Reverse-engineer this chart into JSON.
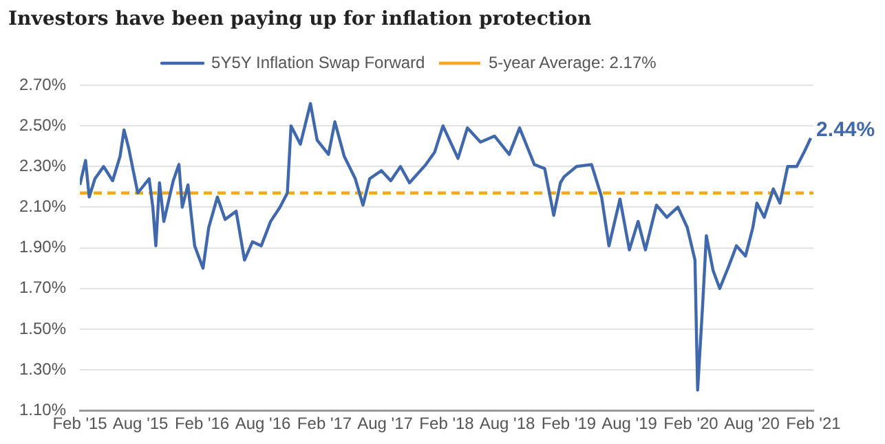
{
  "chart_data": {
    "type": "line",
    "title": "Investors have been paying up for inflation protection",
    "x": [
      "2015-02-01",
      "2015-02-18",
      "2015-03-01",
      "2015-03-18",
      "2015-04-13",
      "2015-05-10",
      "2015-06-01",
      "2015-06-13",
      "2015-06-27",
      "2015-07-24",
      "2015-08-27",
      "2015-09-07",
      "2015-09-16",
      "2015-09-27",
      "2015-10-10",
      "2015-11-07",
      "2015-11-24",
      "2015-12-04",
      "2015-12-21",
      "2016-01-10",
      "2016-02-04",
      "2016-02-21",
      "2016-03-18",
      "2016-04-10",
      "2016-05-13",
      "2016-06-07",
      "2016-07-01",
      "2016-07-27",
      "2016-08-24",
      "2016-09-21",
      "2016-10-13",
      "2016-10-24",
      "2016-11-21",
      "2016-12-21",
      "2017-01-10",
      "2017-02-13",
      "2017-03-04",
      "2017-04-01",
      "2017-05-04",
      "2017-05-27",
      "2017-06-16",
      "2017-07-21",
      "2017-08-18",
      "2017-09-16",
      "2017-10-13",
      "2017-12-01",
      "2017-12-27",
      "2018-01-21",
      "2018-03-07",
      "2018-04-04",
      "2018-05-13",
      "2018-06-24",
      "2018-08-07",
      "2018-09-07",
      "2018-10-21",
      "2018-11-21",
      "2018-12-18",
      "2019-01-07",
      "2019-01-18",
      "2019-02-24",
      "2019-04-10",
      "2019-05-10",
      "2019-06-01",
      "2019-07-04",
      "2019-08-01",
      "2019-08-27",
      "2019-09-18",
      "2019-10-21",
      "2019-11-21",
      "2019-12-24",
      "2020-01-21",
      "2020-02-13",
      "2020-02-21",
      "2020-03-07",
      "2020-03-18",
      "2020-04-07",
      "2020-04-27",
      "2020-05-24",
      "2020-06-16",
      "2020-07-13",
      "2020-08-04",
      "2020-08-16",
      "2020-09-07",
      "2020-10-04",
      "2020-10-24",
      "2020-11-16",
      "2020-12-13",
      "2021-01-04",
      "2021-01-24"
    ],
    "series": [
      {
        "name": "5Y5Y Inflation Swap Forward",
        "color": "#3f68ad",
        "values": [
          2.21,
          2.33,
          2.15,
          2.24,
          2.3,
          2.23,
          2.35,
          2.48,
          2.39,
          2.17,
          2.24,
          2.1,
          1.91,
          2.22,
          2.03,
          2.23,
          2.31,
          2.1,
          2.21,
          1.91,
          1.8,
          2.0,
          2.15,
          2.04,
          2.08,
          1.84,
          1.93,
          1.91,
          2.03,
          2.1,
          2.17,
          2.5,
          2.41,
          2.61,
          2.43,
          2.36,
          2.52,
          2.35,
          2.24,
          2.11,
          2.24,
          2.28,
          2.23,
          2.3,
          2.22,
          2.31,
          2.37,
          2.5,
          2.34,
          2.49,
          2.42,
          2.45,
          2.36,
          2.49,
          2.31,
          2.29,
          2.06,
          2.22,
          2.25,
          2.3,
          2.31,
          2.15,
          1.91,
          2.14,
          1.89,
          2.03,
          1.89,
          2.11,
          2.05,
          2.1,
          2.0,
          1.84,
          1.2,
          1.62,
          1.96,
          1.79,
          1.7,
          1.81,
          1.91,
          1.86,
          2.0,
          2.12,
          2.05,
          2.19,
          2.12,
          2.3,
          2.3,
          2.37,
          2.44
        ]
      }
    ],
    "ref_lines": [
      {
        "axis": "y",
        "value": 2.17,
        "label": "5-year Average: 2.17%",
        "color": "#f5a623",
        "line_style": "dashed"
      }
    ],
    "annotations": [
      {
        "text": "2.44%",
        "x": "2021-01-24",
        "y": 2.44
      }
    ],
    "xlim": [
      "2015-02-01",
      "2021-02-01"
    ],
    "xticks": [
      {
        "value": "2015-02-01",
        "label": "Feb '15"
      },
      {
        "value": "2015-08-01",
        "label": "Aug '15"
      },
      {
        "value": "2016-02-01",
        "label": "Feb '16"
      },
      {
        "value": "2016-08-01",
        "label": "Aug '16"
      },
      {
        "value": "2017-02-01",
        "label": "Feb '17"
      },
      {
        "value": "2017-08-01",
        "label": "Aug '17"
      },
      {
        "value": "2018-02-01",
        "label": "Feb '18"
      },
      {
        "value": "2018-08-01",
        "label": "Aug '18"
      },
      {
        "value": "2019-02-01",
        "label": "Feb '19"
      },
      {
        "value": "2019-08-01",
        "label": "Aug '19"
      },
      {
        "value": "2020-02-01",
        "label": "Feb '20"
      },
      {
        "value": "2020-08-01",
        "label": "Aug '20"
      },
      {
        "value": "2021-02-01",
        "label": "Feb '21"
      }
    ],
    "ylim": [
      1.1,
      2.7
    ],
    "yticks": [
      {
        "value": 1.1,
        "label": "1.10%"
      },
      {
        "value": 1.3,
        "label": "1.30%"
      },
      {
        "value": 1.5,
        "label": "1.50%"
      },
      {
        "value": 1.7,
        "label": "1.70%"
      },
      {
        "value": 1.9,
        "label": "1.90%"
      },
      {
        "value": 2.1,
        "label": "2.10%"
      },
      {
        "value": 2.3,
        "label": "2.30%"
      },
      {
        "value": 2.5,
        "label": "2.50%"
      },
      {
        "value": 2.7,
        "label": "2.70%"
      }
    ],
    "grid": "y",
    "legend": "top",
    "marker": "none",
    "line_style": "solid"
  }
}
